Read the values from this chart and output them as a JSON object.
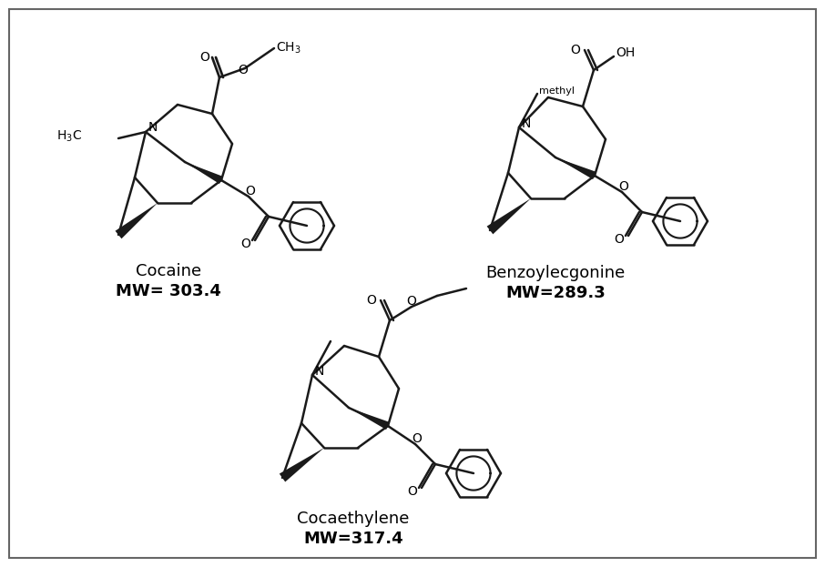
{
  "background": "#ffffff",
  "border_color": "#555555",
  "line_color": "#1a1a1a",
  "lw": 1.8,
  "cocaine_label": "Cocaine",
  "cocaine_mw": "MW= 303.4",
  "benzecgonine_label": "Benzoylecgonine",
  "benzecgonine_mw": "MW=289.3",
  "cocaethylene_label": "Cocaethylene",
  "cocaethylene_mw": "MW=317.4",
  "label_fontsize": 13,
  "mw_fontsize": 13,
  "fig_width": 9.06,
  "fig_height": 6.23
}
